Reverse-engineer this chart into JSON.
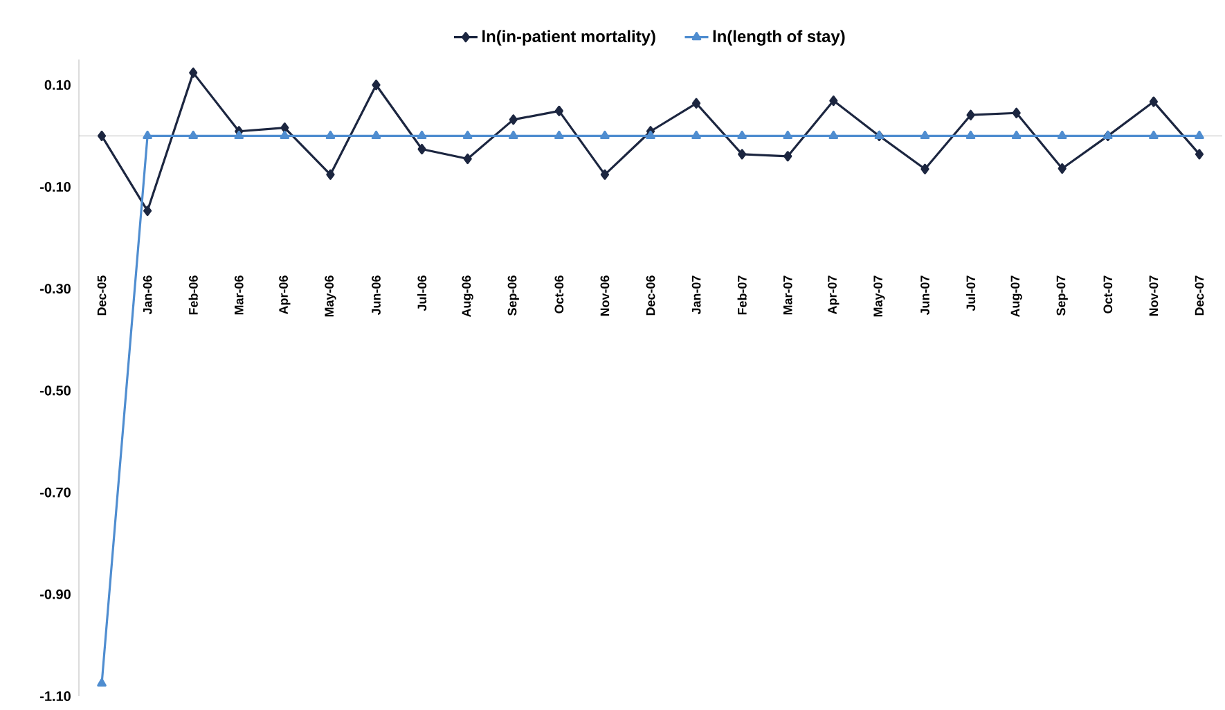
{
  "chart_data": {
    "type": "line",
    "categories": [
      "Dec-05",
      "Jan-06",
      "Feb-06",
      "Mar-06",
      "Apr-06",
      "May-06",
      "Jun-06",
      "Jul-06",
      "Aug-06",
      "Sep-06",
      "Oct-06",
      "Nov-06",
      "Dec-06",
      "Jan-07",
      "Feb-07",
      "Mar-07",
      "Apr-07",
      "May-07",
      "Jun-07",
      "Jul-07",
      "Aug-07",
      "Sep-07",
      "Oct-07",
      "Nov-07",
      "Dec-07"
    ],
    "series": [
      {
        "name": "ln(in-patient mortality)",
        "color": "#1c2640",
        "marker": "diamond",
        "values": [
          0,
          -0.147,
          0.124,
          0.009,
          0.016,
          -0.076,
          0.1,
          -0.026,
          -0.045,
          0.032,
          0.049,
          -0.076,
          0.009,
          0.064,
          -0.036,
          -0.04,
          0.069,
          0,
          -0.065,
          0.041,
          0.045,
          -0.064,
          0,
          0.067,
          -0.036
        ]
      },
      {
        "name": "ln(length of stay)",
        "color": "#4f8dd0",
        "marker": "triangle",
        "values": [
          -1.075,
          0,
          0,
          0,
          0,
          0,
          0,
          0,
          0,
          0,
          0,
          0,
          0,
          0,
          0,
          0,
          0,
          0,
          0,
          0,
          0,
          0,
          0,
          0,
          0
        ]
      }
    ],
    "ylim": [
      -1.1,
      0.15
    ],
    "yticks": [
      {
        "value": -1.1,
        "label": "-1.10"
      },
      {
        "value": -0.9,
        "label": "-0.90"
      },
      {
        "value": -0.7,
        "label": "-0.70"
      },
      {
        "value": -0.5,
        "label": "-0.50"
      },
      {
        "value": -0.3,
        "label": "-0.30"
      },
      {
        "value": -0.1,
        "label": "-0.10"
      },
      {
        "value": 0.1,
        "label": "0.10"
      }
    ],
    "grid": false,
    "legend": "top",
    "line_style": "solid"
  }
}
